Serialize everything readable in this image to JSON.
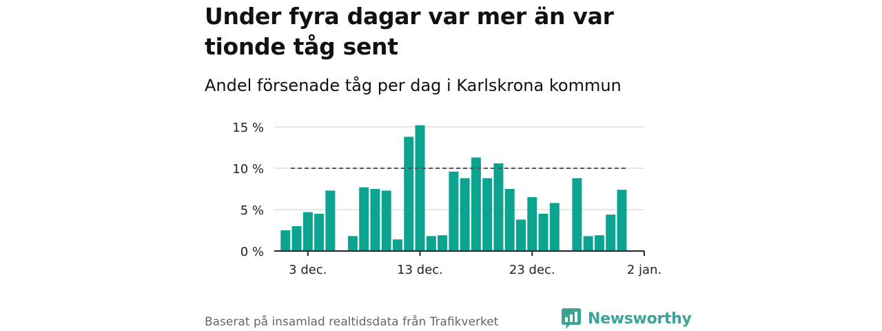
{
  "title": "Under fyra dagar var mer än var tionde tåg sent",
  "subtitle": "Andel försenade tåg per dag i Karlskrona kommun",
  "source": "Baserat på insamlad realtidsdata från Trafikverket",
  "brand": {
    "name": "Newsworthy",
    "color": "#3aa597"
  },
  "colors": {
    "bar": "#0ca390",
    "grid": "#dddddd",
    "reference": "#555555",
    "axis": "#222222"
  },
  "chart_data": {
    "type": "bar",
    "x": [
      "2023-12-01",
      "2023-12-02",
      "2023-12-03",
      "2023-12-04",
      "2023-12-05",
      "2023-12-06",
      "2023-12-07",
      "2023-12-08",
      "2023-12-09",
      "2023-12-10",
      "2023-12-11",
      "2023-12-12",
      "2023-12-13",
      "2023-12-14",
      "2023-12-15",
      "2023-12-16",
      "2023-12-17",
      "2023-12-18",
      "2023-12-19",
      "2023-12-20",
      "2023-12-21",
      "2023-12-22",
      "2023-12-23",
      "2023-12-24",
      "2023-12-25",
      "2023-12-26",
      "2023-12-27",
      "2023-12-28",
      "2023-12-29",
      "2023-12-30",
      "2023-12-31"
    ],
    "values": [
      2.5,
      3.0,
      4.7,
      4.5,
      7.3,
      null,
      1.8,
      7.7,
      7.5,
      7.3,
      1.4,
      13.8,
      15.2,
      1.8,
      1.9,
      9.6,
      8.8,
      11.3,
      8.8,
      10.6,
      7.5,
      3.8,
      6.5,
      4.5,
      5.8,
      null,
      8.8,
      1.8,
      1.9,
      4.4,
      7.4
    ],
    "x_ticks": [
      {
        "date": "2023-12-03",
        "label": "3 dec."
      },
      {
        "date": "2023-12-13",
        "label": "13 dec."
      },
      {
        "date": "2023-12-23",
        "label": "23 dec."
      },
      {
        "date": "2024-01-02",
        "label": "2 jan."
      }
    ],
    "y_ticks": [
      {
        "value": 0,
        "label": "0 %"
      },
      {
        "value": 5,
        "label": "5 %"
      },
      {
        "value": 10,
        "label": "10 %"
      },
      {
        "value": 15,
        "label": "15 %"
      }
    ],
    "ylim": [
      0,
      15
    ],
    "xlim": [
      "2023-11-30",
      "2024-01-02"
    ],
    "reference_line": {
      "value": 10,
      "style": "dashed"
    },
    "grid": true
  }
}
